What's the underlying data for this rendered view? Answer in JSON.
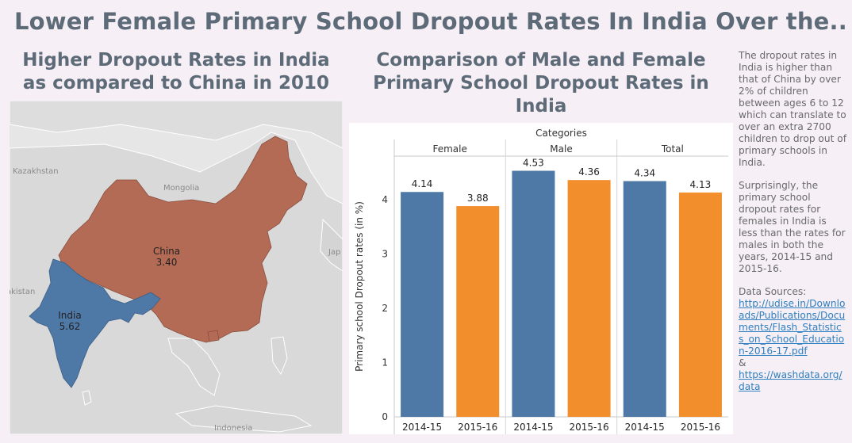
{
  "title": "Lower Female Primary School Dropout Rates In India Over the..",
  "map": {
    "title": "Higher Dropout Rates in India as compared to China in 2010",
    "regions": [
      {
        "name": "China",
        "value": "3.40",
        "color": "#b36b55"
      },
      {
        "name": "India",
        "value": "5.62",
        "color": "#4e79a7"
      }
    ],
    "background_labels": [
      "Kazakhstan",
      "Mongolia",
      "Jap",
      "akistan",
      "Indonesia"
    ]
  },
  "chart_data": {
    "type": "bar",
    "title": "Comparison of Male and Female Primary School Dropout Rates in India",
    "header_label": "Categories",
    "groups": [
      "Female",
      "Male",
      "Total"
    ],
    "categories": [
      "2014-15",
      "2015-16"
    ],
    "series": [
      {
        "group": "Female",
        "values": [
          4.14,
          3.88
        ]
      },
      {
        "group": "Male",
        "values": [
          4.53,
          4.36
        ]
      },
      {
        "group": "Total",
        "values": [
          4.34,
          4.13
        ]
      }
    ],
    "colors": {
      "2014-15": "#4e79a7",
      "2015-16": "#f28e2b"
    },
    "ylabel": "Primary school Dropout rates (in %)",
    "yticks": [
      0,
      1,
      2,
      3,
      4
    ],
    "ylim": [
      0,
      4.8
    ],
    "grid": false
  },
  "sidebar": {
    "paragraph1": "The dropout rates in India is higher than that of China by over 2% of children between ages 6 to 12 which can translate to over an extra 2700 children to drop out of primary schools in India.",
    "paragraph2": "Surprisingly, the primary school dropout rates for females in India is less than the rates for males in both the years, 2014-15 and 2015-16.",
    "sources_label": "Data Sources:",
    "link1": "http://udise.in/Downloads/Publications/Documents/Flash_Statistics_on_School_Education-2016-17.pdf",
    "amp": "&",
    "link2": "https://washdata.org/data"
  }
}
